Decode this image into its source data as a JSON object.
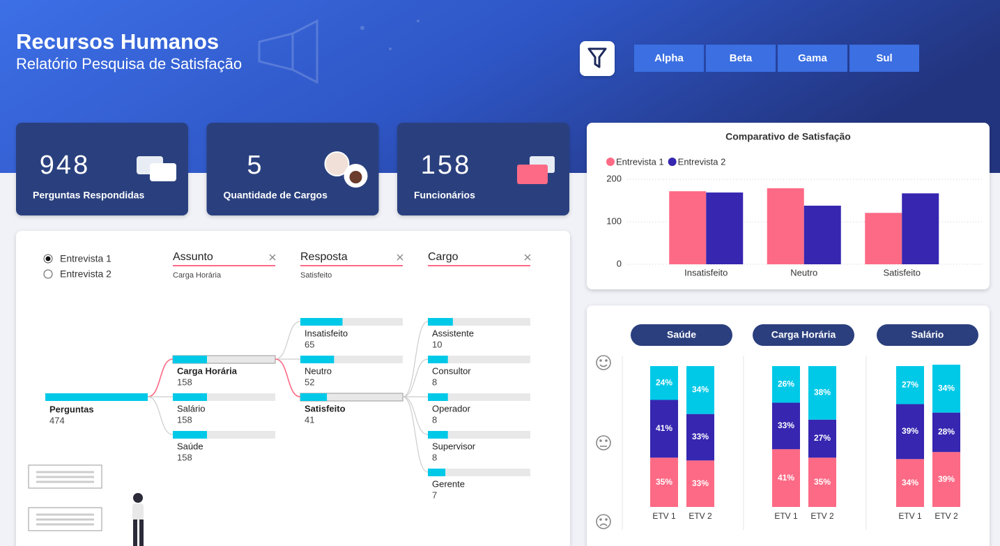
{
  "header": {
    "title": "Recursos Humanos",
    "subtitle": "Relatório Pesquisa de Satisfação"
  },
  "filters": [
    "Alpha",
    "Beta",
    "Gama",
    "Sul"
  ],
  "kpis": [
    {
      "value": 948,
      "label": "Perguntas Respondidas"
    },
    {
      "value": 5,
      "label": "Quantidade de Cargos"
    },
    {
      "value": 158,
      "label": "Funcionários"
    }
  ],
  "tree": {
    "options": [
      "Entrevista 1",
      "Entrevista 2"
    ],
    "levels": [
      {
        "title": "Assunto",
        "selection": "Carga Horária"
      },
      {
        "title": "Resposta",
        "selection": "Satisfeito"
      },
      {
        "title": "Cargo"
      }
    ],
    "root": {
      "label": "Perguntas",
      "value": 474
    },
    "columns": [
      [
        {
          "label": "Carga Horária",
          "value": 158
        },
        {
          "label": "Salário",
          "value": 158
        },
        {
          "label": "Saúde",
          "value": 158
        }
      ],
      [
        {
          "label": "Insatisfeito",
          "value": 65
        },
        {
          "label": "Neutro",
          "value": 52
        },
        {
          "label": "Satisfeito",
          "value": 41
        }
      ],
      [
        {
          "label": "Assistente",
          "value": 10
        },
        {
          "label": "Consultor",
          "value": 8
        },
        {
          "label": "Operador",
          "value": 8
        },
        {
          "label": "Supervisor",
          "value": 8
        },
        {
          "label": "Gerente",
          "value": 7
        }
      ]
    ]
  },
  "chart_data": [
    {
      "type": "bar",
      "title": "Comparativo de Satisfação",
      "categories": [
        "Insatisfeito",
        "Neutro",
        "Satisfeito"
      ],
      "series": [
        {
          "name": "Entrevista 1",
          "color": "#fd6a85",
          "values": [
            172,
            179,
            121
          ]
        },
        {
          "name": "Entrevista 2",
          "color": "#3626b0",
          "values": [
            169,
            138,
            167
          ]
        }
      ],
      "ylim": [
        0,
        220
      ],
      "yticks": [
        0,
        100,
        200
      ],
      "grid": true,
      "legend": "top-left"
    },
    {
      "type": "stacked_bar",
      "title": "Saúde",
      "categories": [
        "ETV 1",
        "ETV 2"
      ],
      "series": [
        {
          "color": "#fd6a85",
          "values": [
            35,
            33
          ],
          "value_labels": [
            "35%",
            "33%"
          ]
        },
        {
          "color": "#3626b0",
          "values": [
            41,
            33
          ],
          "value_labels": [
            "41%",
            "33%"
          ]
        },
        {
          "color": "#00c9e8",
          "values": [
            24,
            34
          ],
          "value_labels": [
            "24%",
            "34%"
          ]
        }
      ]
    },
    {
      "type": "stacked_bar",
      "title": "Carga Horária",
      "categories": [
        "ETV 1",
        "ETV 2"
      ],
      "series": [
        {
          "color": "#fd6a85",
          "values": [
            41,
            35
          ],
          "value_labels": [
            "41%",
            "35%"
          ]
        },
        {
          "color": "#3626b0",
          "values": [
            33,
            27
          ],
          "value_labels": [
            "33%",
            "27%"
          ]
        },
        {
          "color": "#00c9e8",
          "values": [
            26,
            38
          ],
          "value_labels": [
            "26%",
            "38%"
          ]
        }
      ]
    },
    {
      "type": "stacked_bar",
      "title": "Salário",
      "categories": [
        "ETV 1",
        "ETV 2"
      ],
      "series": [
        {
          "color": "#fd6a85",
          "values": [
            34,
            39
          ],
          "value_labels": [
            "34%",
            "39%"
          ]
        },
        {
          "color": "#3626b0",
          "values": [
            39,
            28
          ],
          "value_labels": [
            "39%",
            "28%"
          ]
        },
        {
          "color": "#00c9e8",
          "values": [
            27,
            34
          ],
          "value_labels": [
            "27%",
            "34%"
          ]
        }
      ]
    }
  ]
}
